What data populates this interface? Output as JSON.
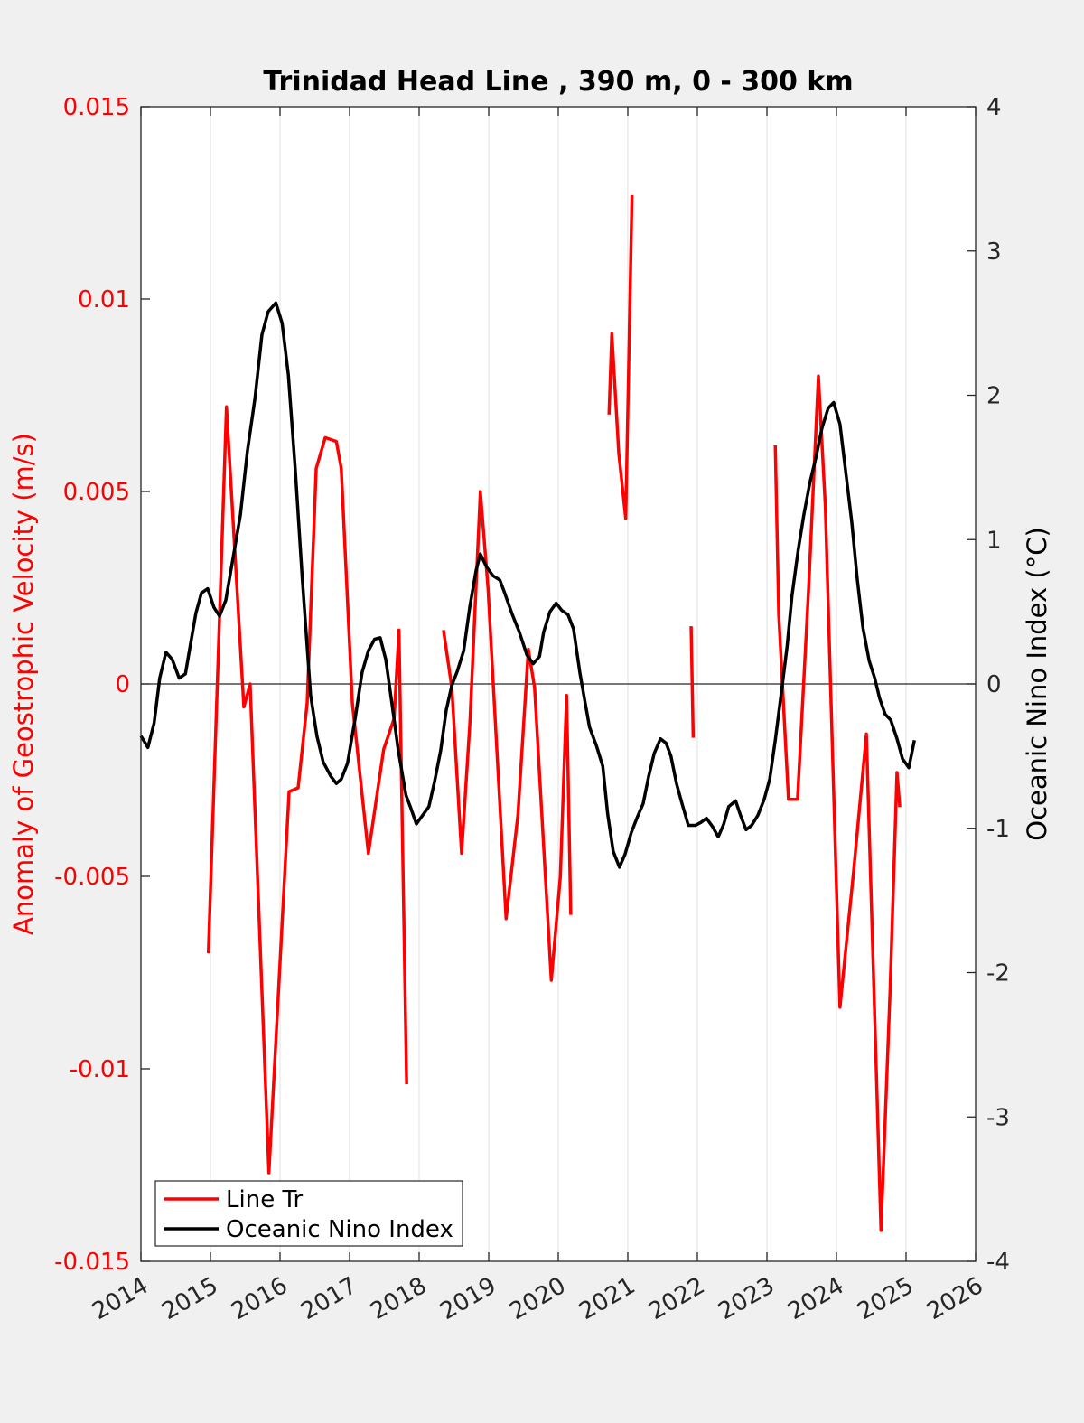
{
  "chart_data": {
    "type": "line",
    "title": "Trinidad Head Line , 390 m, 0 - 300 km",
    "ylabel": "Anomaly of Geostrophic Velocity (m/s)",
    "y2label": "Oceanic Nino Index (°C)",
    "xlim": [
      2014,
      2026
    ],
    "xticks": [
      2014,
      2015,
      2016,
      2017,
      2018,
      2019,
      2020,
      2021,
      2022,
      2023,
      2024,
      2025,
      2026
    ],
    "ylim": [
      -0.015,
      0.015
    ],
    "yticks": [
      -0.015,
      -0.01,
      -0.005,
      0,
      0.005,
      0.01,
      0.015
    ],
    "y2lim": [
      -4,
      4
    ],
    "y2ticks": [
      -4,
      -3,
      -2,
      -1,
      0,
      1,
      2,
      3,
      4
    ],
    "grid": true,
    "legend": "lower left",
    "series": [
      {
        "name": "Line Tr",
        "color": "#ff0000",
        "axis": "y",
        "x": [
          2014.97,
          2015.23,
          2015.48,
          2015.57,
          2015.84,
          2016.13,
          2016.26,
          2016.39,
          2016.52,
          2016.65,
          2016.81,
          2016.88,
          2017.04,
          2017.27,
          2017.49,
          2017.64,
          2017.71,
          2017.82,
          null,
          2018.35,
          2018.47,
          2018.61,
          2018.73,
          2018.88,
          2018.99,
          2019.25,
          2019.42,
          2019.57,
          2019.66,
          2019.9,
          2020.03,
          2020.12,
          2020.18,
          null,
          2020.73,
          2020.77,
          2020.87,
          2020.97,
          2021.06,
          null,
          2021.91,
          2021.94,
          null,
          2023.12,
          2023.17,
          2023.31,
          2023.44,
          2023.6,
          2023.74,
          2023.84,
          2024.05,
          2024.25,
          2024.43,
          2024.64,
          2024.77,
          2024.87,
          2024.91
        ],
        "values": [
          -0.007,
          0.0072,
          -0.0006,
          0.0,
          -0.0127,
          -0.0028,
          -0.0027,
          -0.0005,
          0.0056,
          0.0064,
          0.0063,
          0.0056,
          -0.0005,
          -0.0044,
          -0.0017,
          -0.0009,
          0.0014,
          -0.0104,
          null,
          0.0014,
          -0.0001,
          -0.0044,
          -0.001,
          0.005,
          0.0025,
          -0.0061,
          -0.0034,
          0.0009,
          -0.0001,
          -0.0077,
          -0.005,
          -0.0003,
          -0.006,
          null,
          0.007,
          0.0091,
          0.006,
          0.0043,
          0.0127,
          null,
          0.0015,
          -0.0014,
          null,
          0.0062,
          0.0018,
          -0.003,
          -0.003,
          0.0025,
          0.008,
          0.0046,
          -0.0084,
          -0.0048,
          -0.0013,
          -0.0142,
          -0.008,
          -0.0023,
          -0.0032
        ]
      },
      {
        "name": "Oceanic Nino Index",
        "color": "#000000",
        "axis": "y2",
        "x": [
          2014.0,
          2014.1,
          2014.19,
          2014.27,
          2014.36,
          2014.45,
          2014.55,
          2014.64,
          2014.7,
          2014.79,
          2014.87,
          2014.96,
          2015.05,
          2015.13,
          2015.22,
          2015.32,
          2015.43,
          2015.53,
          2015.64,
          2015.74,
          2015.83,
          2015.94,
          2016.03,
          2016.12,
          2016.22,
          2016.32,
          2016.44,
          2016.53,
          2016.62,
          2016.73,
          2016.81,
          2016.88,
          2016.97,
          2017.08,
          2017.18,
          2017.27,
          2017.36,
          2017.44,
          2017.52,
          2017.61,
          2017.7,
          2017.81,
          2017.88,
          2017.96,
          2018.05,
          2018.14,
          2018.22,
          2018.31,
          2018.39,
          2018.47,
          2018.55,
          2018.64,
          2018.73,
          2018.82,
          2018.88,
          2018.97,
          2019.06,
          2019.16,
          2019.23,
          2019.34,
          2019.44,
          2019.55,
          2019.64,
          2019.73,
          2019.79,
          2019.88,
          2019.97,
          2020.05,
          2020.14,
          2020.22,
          2020.31,
          2020.39,
          2020.45,
          2020.55,
          2020.64,
          2020.71,
          2020.79,
          2020.88,
          2020.96,
          2021.05,
          2021.13,
          2021.22,
          2021.3,
          2021.38,
          2021.47,
          2021.55,
          2021.62,
          2021.7,
          2021.78,
          2021.87,
          2021.97,
          2022.05,
          2022.13,
          2022.22,
          2022.3,
          2022.38,
          2022.45,
          2022.55,
          2022.62,
          2022.7,
          2022.78,
          2022.87,
          2022.96,
          2023.04,
          2023.12,
          2023.21,
          2023.29,
          2023.36,
          2023.45,
          2023.53,
          2023.62,
          2023.71,
          2023.79,
          2023.88,
          2023.96,
          2024.05,
          2024.13,
          2024.22,
          2024.3,
          2024.38,
          2024.47,
          2024.55,
          2024.62,
          2024.7,
          2024.78,
          2024.87,
          2024.95,
          2025.04,
          2025.12
        ],
        "values": [
          -0.36,
          -0.44,
          -0.27,
          0.04,
          0.22,
          0.17,
          0.04,
          0.07,
          0.24,
          0.49,
          0.63,
          0.66,
          0.53,
          0.47,
          0.58,
          0.86,
          1.17,
          1.61,
          1.98,
          2.42,
          2.58,
          2.64,
          2.5,
          2.14,
          1.48,
          0.73,
          -0.08,
          -0.36,
          -0.54,
          -0.64,
          -0.69,
          -0.66,
          -0.55,
          -0.24,
          0.08,
          0.23,
          0.31,
          0.32,
          0.17,
          -0.14,
          -0.46,
          -0.77,
          -0.86,
          -0.97,
          -0.91,
          -0.85,
          -0.68,
          -0.46,
          -0.18,
          -0.01,
          0.09,
          0.23,
          0.54,
          0.79,
          0.9,
          0.81,
          0.75,
          0.72,
          0.63,
          0.48,
          0.36,
          0.2,
          0.14,
          0.19,
          0.36,
          0.5,
          0.56,
          0.51,
          0.48,
          0.38,
          0.08,
          -0.14,
          -0.3,
          -0.43,
          -0.57,
          -0.9,
          -1.16,
          -1.27,
          -1.18,
          -1.03,
          -0.93,
          -0.83,
          -0.64,
          -0.48,
          -0.38,
          -0.41,
          -0.5,
          -0.69,
          -0.83,
          -0.98,
          -0.98,
          -0.96,
          -0.93,
          -0.99,
          -1.06,
          -0.97,
          -0.85,
          -0.81,
          -0.91,
          -1.01,
          -0.98,
          -0.91,
          -0.8,
          -0.66,
          -0.39,
          -0.05,
          0.26,
          0.61,
          0.93,
          1.17,
          1.4,
          1.58,
          1.77,
          1.91,
          1.95,
          1.8,
          1.48,
          1.12,
          0.72,
          0.39,
          0.16,
          0.04,
          -0.1,
          -0.21,
          -0.25,
          -0.38,
          -0.52,
          -0.58,
          -0.39
        ]
      }
    ]
  }
}
